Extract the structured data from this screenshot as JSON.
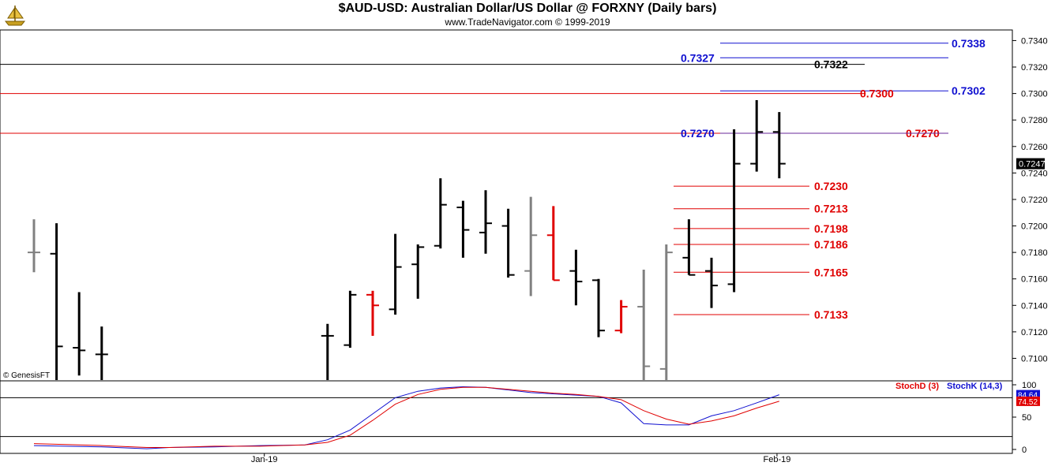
{
  "header": {
    "title": "$AUD-USD:  Australian Dollar/US Dollar @ FORXNY  (Daily bars)",
    "subtitle": "www.TradeNavigator.com © 1999-2019"
  },
  "watermark": "© GenesisFT",
  "colors": {
    "black": "#000000",
    "red": "#e00000",
    "blue": "#1010d0",
    "gray": "#808080",
    "purple": "#6a2a9a"
  },
  "chart_data": [
    {
      "type": "ohlc",
      "ylim": [
        0.7083,
        0.7348
      ],
      "y_ticks": [
        "0.7100",
        "0.7120",
        "0.7140",
        "0.7160",
        "0.7180",
        "0.7200",
        "0.7220",
        "0.7240",
        "0.7260",
        "0.7280",
        "0.7300",
        "0.7320",
        "0.7340"
      ],
      "x_labels": [
        "Jan-19",
        "Feb-19"
      ],
      "last_price_label": "0.7247",
      "bars": [
        {
          "slot": 0,
          "open": 0.718,
          "high": 0.7205,
          "low": 0.7165,
          "close": 0.718,
          "color": "gray"
        },
        {
          "slot": 1,
          "open": 0.7179,
          "high": 0.7202,
          "low": 0.7083,
          "close": 0.7109,
          "color": "black"
        },
        {
          "slot": 2,
          "open": 0.7108,
          "high": 0.715,
          "low": 0.7087,
          "close": 0.7106,
          "color": "black"
        },
        {
          "slot": 3,
          "open": 0.7103,
          "high": 0.7124,
          "low": 0.7083,
          "close": 0.7103,
          "color": "black"
        },
        {
          "slot": 13,
          "open": 0.7117,
          "high": 0.7126,
          "low": 0.7083,
          "close": 0.7117,
          "color": "black"
        },
        {
          "slot": 14,
          "open": 0.711,
          "high": 0.7151,
          "low": 0.7108,
          "close": 0.7148,
          "color": "black"
        },
        {
          "slot": 15,
          "open": 0.7148,
          "high": 0.7151,
          "low": 0.7117,
          "close": 0.714,
          "color": "red"
        },
        {
          "slot": 16,
          "open": 0.7137,
          "high": 0.7194,
          "low": 0.7133,
          "close": 0.7169,
          "color": "black"
        },
        {
          "slot": 17,
          "open": 0.7171,
          "high": 0.7186,
          "low": 0.7145,
          "close": 0.7184,
          "color": "black"
        },
        {
          "slot": 18,
          "open": 0.7185,
          "high": 0.7236,
          "low": 0.7183,
          "close": 0.7216,
          "color": "black"
        },
        {
          "slot": 19,
          "open": 0.7214,
          "high": 0.7219,
          "low": 0.7176,
          "close": 0.7197,
          "color": "black"
        },
        {
          "slot": 20,
          "open": 0.7195,
          "high": 0.7227,
          "low": 0.7179,
          "close": 0.7202,
          "color": "black"
        },
        {
          "slot": 21,
          "open": 0.72,
          "high": 0.7213,
          "low": 0.7161,
          "close": 0.7163,
          "color": "black"
        },
        {
          "slot": 22,
          "open": 0.7166,
          "high": 0.7222,
          "low": 0.7147,
          "close": 0.7193,
          "color": "gray"
        },
        {
          "slot": 23,
          "open": 0.7193,
          "high": 0.7215,
          "low": 0.7159,
          "close": 0.7159,
          "color": "red"
        },
        {
          "slot": 24,
          "open": 0.7166,
          "high": 0.7182,
          "low": 0.714,
          "close": 0.7158,
          "color": "black"
        },
        {
          "slot": 25,
          "open": 0.7159,
          "high": 0.716,
          "low": 0.7116,
          "close": 0.7121,
          "color": "black"
        },
        {
          "slot": 26,
          "open": 0.7121,
          "high": 0.7144,
          "low": 0.7119,
          "close": 0.7139,
          "color": "red"
        },
        {
          "slot": 27,
          "open": 0.7139,
          "high": 0.7167,
          "low": 0.7083,
          "close": 0.7094,
          "color": "gray"
        },
        {
          "slot": 28,
          "open": 0.7092,
          "high": 0.7186,
          "low": 0.7083,
          "close": 0.718,
          "color": "gray"
        },
        {
          "slot": 29,
          "open": 0.7176,
          "high": 0.7205,
          "low": 0.7163,
          "close": 0.7163,
          "color": "black"
        },
        {
          "slot": 30,
          "open": 0.7166,
          "high": 0.7176,
          "low": 0.7138,
          "close": 0.7155,
          "color": "black"
        },
        {
          "slot": 31,
          "open": 0.7156,
          "high": 0.7273,
          "low": 0.715,
          "close": 0.7247,
          "color": "black"
        },
        {
          "slot": 32,
          "open": 0.7247,
          "high": 0.7295,
          "low": 0.7241,
          "close": 0.7271,
          "color": "black"
        },
        {
          "slot": 33,
          "open": 0.7271,
          "high": 0.7286,
          "low": 0.7236,
          "close": 0.7247,
          "color": "black"
        }
      ],
      "levels": [
        {
          "value": 0.7338,
          "label": "0.7338",
          "color": "blue",
          "from_slot": 31,
          "to_edge": true
        },
        {
          "value": 0.7327,
          "label": "0.7327",
          "color": "blue",
          "from_slot": 31,
          "to_edge": true
        },
        {
          "value": 0.7322,
          "label": "0.7322",
          "color": "black",
          "from_slot": -1,
          "to_edge": false
        },
        {
          "value": 0.7302,
          "label": "0.7302",
          "color": "blue",
          "from_slot": 31,
          "to_edge": true
        },
        {
          "value": 0.73,
          "label": "0.7300",
          "color": "red",
          "from_slot": -1,
          "to_edge": false
        },
        {
          "value": 0.727,
          "label": "0.7270",
          "color": "red",
          "from_slot": -1,
          "to_edge": true
        },
        {
          "value": 0.727,
          "label": "0.7270",
          "color": "blue",
          "from_slot": 31,
          "to_edge": true
        },
        {
          "value": 0.723,
          "label": "0.7230",
          "color": "red",
          "from_slot": 28,
          "to_edge": false
        },
        {
          "value": 0.7213,
          "label": "0.7213",
          "color": "red",
          "from_slot": 28,
          "to_edge": false
        },
        {
          "value": 0.7198,
          "label": "0.7198",
          "color": "red",
          "from_slot": 28,
          "to_edge": false
        },
        {
          "value": 0.7186,
          "label": "0.7186",
          "color": "red",
          "from_slot": 28,
          "to_edge": false
        },
        {
          "value": 0.7165,
          "label": "0.7165",
          "color": "red",
          "from_slot": 28,
          "to_edge": false
        },
        {
          "value": 0.7133,
          "label": "0.7133",
          "color": "red",
          "from_slot": 28,
          "to_edge": false
        }
      ]
    },
    {
      "type": "line",
      "title": "",
      "ylim": [
        0,
        100
      ],
      "y_ticks": [
        "0",
        "50",
        "100"
      ],
      "reference_lines": [
        20,
        80
      ],
      "legend": [
        "StochD (3)",
        "StochK (14,3)"
      ],
      "last_values": {
        "StochK": "84.64",
        "StochD": "74.52"
      },
      "series": [
        {
          "name": "StochK (14,3)",
          "color": "blue",
          "values": [
            [
              0,
              6
            ],
            [
              3,
              4
            ],
            [
              5,
              1
            ],
            [
              6,
              3
            ],
            [
              8,
              4
            ],
            [
              10,
              6
            ],
            [
              12,
              7
            ],
            [
              13,
              15
            ],
            [
              14,
              30
            ],
            [
              15,
              55
            ],
            [
              16,
              80
            ],
            [
              17,
              90
            ],
            [
              18,
              95
            ],
            [
              19,
              97
            ],
            [
              20,
              96
            ],
            [
              21,
              92
            ],
            [
              22,
              88
            ],
            [
              23,
              86
            ],
            [
              24,
              84
            ],
            [
              25,
              82
            ],
            [
              26,
              72
            ],
            [
              27,
              40
            ],
            [
              28,
              38
            ],
            [
              29,
              38
            ],
            [
              30,
              52
            ],
            [
              31,
              60
            ],
            [
              32,
              72
            ],
            [
              33,
              84.64
            ]
          ]
        },
        {
          "name": "StochD (3)",
          "color": "red",
          "values": [
            [
              0,
              9
            ],
            [
              3,
              6
            ],
            [
              5,
              3
            ],
            [
              6,
              3
            ],
            [
              8,
              5
            ],
            [
              10,
              5
            ],
            [
              12,
              7
            ],
            [
              13,
              11
            ],
            [
              14,
              22
            ],
            [
              15,
              45
            ],
            [
              16,
              70
            ],
            [
              17,
              85
            ],
            [
              18,
              93
            ],
            [
              19,
              96
            ],
            [
              20,
              96
            ],
            [
              21,
              93
            ],
            [
              22,
              90
            ],
            [
              23,
              87
            ],
            [
              24,
              85
            ],
            [
              25,
              82
            ],
            [
              26,
              77
            ],
            [
              27,
              60
            ],
            [
              28,
              47
            ],
            [
              29,
              39
            ],
            [
              30,
              44
            ],
            [
              31,
              52
            ],
            [
              32,
              64
            ],
            [
              33,
              74.52
            ]
          ]
        }
      ]
    }
  ]
}
